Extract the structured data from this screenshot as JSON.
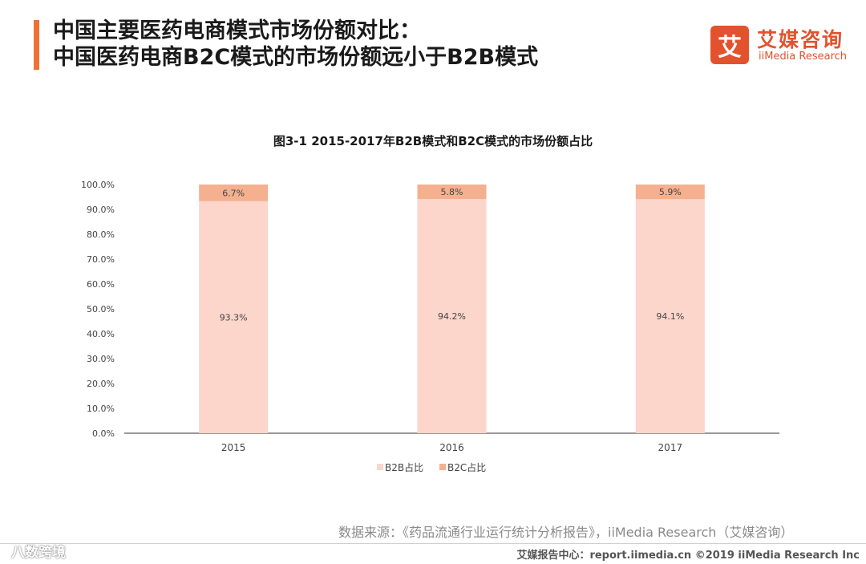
{
  "header": {
    "title_line1": "中国主要医药电商模式市场份额对比：",
    "title_line2": "中国医药电商B2C模式的市场份额远小于B2B模式"
  },
  "logo": {
    "icon_char": "艾",
    "name_cn": "艾媒咨询",
    "name_en": "iiMedia Research",
    "color": "#e2522c"
  },
  "chart_data": {
    "type": "bar",
    "stacked": true,
    "title": "图3-1 2015-2017年B2B模式和B2C模式的市场份额占比",
    "categories": [
      "2015",
      "2016",
      "2017"
    ],
    "series": [
      {
        "name": "B2B占比",
        "values": [
          93.3,
          94.2,
          94.1
        ],
        "labels": [
          "93.3%",
          "94.2%",
          "94.1%"
        ],
        "color": "#fcd5cb"
      },
      {
        "name": "B2C占比",
        "values": [
          6.7,
          5.8,
          5.9
        ],
        "labels": [
          "6.7%",
          "5.8%",
          "5.9%"
        ],
        "color": "#f4b08f"
      }
    ],
    "ylim": [
      0,
      100
    ],
    "yticks": [
      "0.0%",
      "10.0%",
      "20.0%",
      "30.0%",
      "40.0%",
      "50.0%",
      "60.0%",
      "70.0%",
      "80.0%",
      "90.0%",
      "100.0%"
    ],
    "grid": false,
    "legend_position": "bottom"
  },
  "source": "数据来源：《药品流通行业运行统计分析报告》，iiMedia Research（艾媒咨询）",
  "footer": "艾媒报告中心：report.iimedia.cn ©2019 iiMedia Research Inc",
  "watermark": "八数跨境"
}
